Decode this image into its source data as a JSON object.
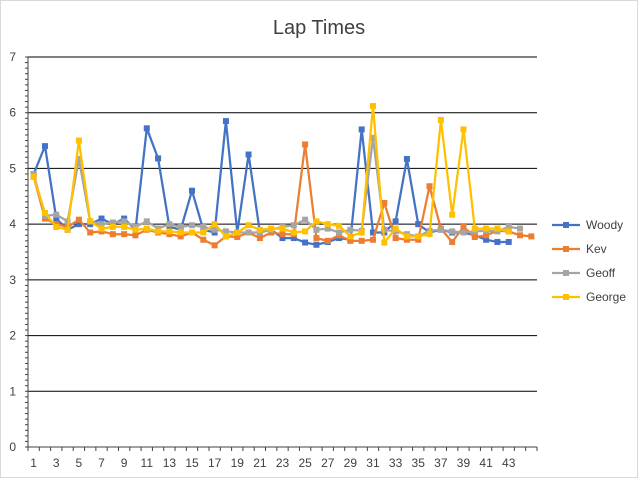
{
  "chart_data": {
    "type": "line",
    "title": "Lap Times",
    "xlabel": "",
    "ylabel": "",
    "ylim": [
      0,
      7
    ],
    "yticks": [
      0,
      1,
      2,
      3,
      4,
      5,
      6,
      7
    ],
    "x": [
      1,
      2,
      3,
      4,
      5,
      6,
      7,
      8,
      9,
      10,
      11,
      12,
      13,
      14,
      15,
      16,
      17,
      18,
      19,
      20,
      21,
      22,
      23,
      24,
      25,
      26,
      27,
      28,
      29,
      30,
      31,
      32,
      33,
      34,
      35,
      36,
      37,
      38,
      39,
      40,
      41,
      42,
      43,
      44,
      45
    ],
    "xtick_labels": [
      "1",
      "3",
      "5",
      "7",
      "9",
      "11",
      "13",
      "15",
      "17",
      "19",
      "21",
      "23",
      "25",
      "27",
      "29",
      "31",
      "33",
      "35",
      "37",
      "39",
      "41",
      "43"
    ],
    "grid": true,
    "legend_position": "right",
    "series": [
      {
        "name": "Woody",
        "color": "#4472C4",
        "values": [
          4.9,
          5.4,
          4.1,
          3.9,
          4.0,
          4.0,
          4.1,
          4.0,
          4.1,
          3.9,
          5.72,
          5.18,
          3.95,
          3.9,
          4.6,
          3.9,
          3.85,
          5.85,
          3.85,
          5.25,
          3.85,
          3.9,
          3.75,
          3.75,
          3.67,
          3.63,
          3.68,
          3.75,
          3.72,
          5.7,
          3.85,
          3.85,
          4.05,
          5.17,
          4.0,
          3.85,
          3.9,
          3.85,
          3.85,
          3.8,
          3.72,
          3.68,
          3.68,
          null,
          null
        ]
      },
      {
        "name": "Kev",
        "color": "#ED7D31",
        "values": [
          4.85,
          4.1,
          4.0,
          3.95,
          4.08,
          3.85,
          3.87,
          3.82,
          3.82,
          3.8,
          3.9,
          3.85,
          3.82,
          3.78,
          3.85,
          3.72,
          3.62,
          3.78,
          3.77,
          3.85,
          3.75,
          3.85,
          3.82,
          3.82,
          5.43,
          3.75,
          3.7,
          3.8,
          3.7,
          3.7,
          3.72,
          4.38,
          3.75,
          3.72,
          3.72,
          4.68,
          3.92,
          3.68,
          3.95,
          3.77,
          3.8,
          3.88,
          3.87,
          3.8,
          3.78
        ]
      },
      {
        "name": "Geoff",
        "color": "#A5A5A5",
        "values": [
          4.9,
          4.15,
          4.17,
          4.05,
          5.17,
          4.05,
          4.0,
          4.03,
          4.05,
          3.95,
          4.05,
          3.92,
          4.0,
          3.95,
          3.98,
          3.95,
          3.9,
          3.87,
          3.85,
          3.85,
          3.85,
          3.9,
          3.95,
          3.98,
          4.08,
          3.9,
          3.92,
          3.85,
          3.9,
          3.88,
          5.55,
          3.9,
          3.87,
          3.82,
          3.78,
          3.88,
          3.9,
          3.87,
          3.85,
          3.87,
          3.88,
          3.87,
          3.95,
          3.92,
          null
        ]
      },
      {
        "name": "George",
        "color": "#FFC000",
        "values": [
          4.85,
          4.2,
          3.95,
          3.9,
          5.5,
          4.05,
          3.92,
          3.95,
          3.95,
          3.9,
          3.92,
          3.87,
          3.87,
          3.85,
          3.85,
          3.85,
          4.0,
          3.78,
          3.85,
          3.98,
          3.9,
          3.92,
          3.92,
          3.85,
          3.87,
          4.05,
          4.0,
          3.97,
          3.78,
          3.85,
          6.12,
          3.67,
          3.92,
          3.78,
          3.78,
          3.82,
          5.87,
          4.17,
          5.7,
          3.92,
          3.92,
          3.92,
          3.87,
          null,
          null
        ]
      }
    ]
  }
}
